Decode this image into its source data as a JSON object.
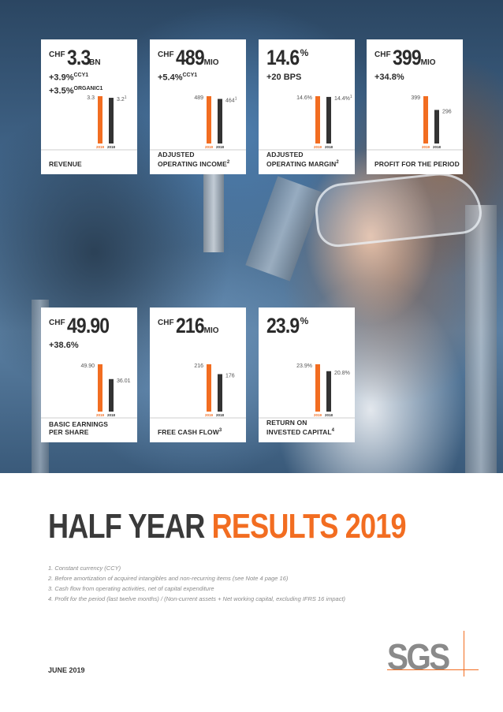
{
  "cards": [
    {
      "currency": "CHF",
      "value": "3.3",
      "suffix": "BN",
      "growth": [
        "+3.9%",
        "+3.5%"
      ],
      "growth_sup": [
        "CCY1",
        "ORGANIC1"
      ],
      "bar_labels": [
        "3.3",
        "3.2"
      ],
      "bar_label_sup": [
        "",
        "1"
      ],
      "bars": [
        3.3,
        3.2
      ],
      "years": [
        "2019",
        "2018"
      ],
      "label": "REVENUE"
    },
    {
      "currency": "CHF",
      "value": "489",
      "suffix": "MIO",
      "growth": [
        "+5.4%"
      ],
      "growth_sup": [
        "CCY1"
      ],
      "bar_labels": [
        "489",
        "464"
      ],
      "bar_label_sup": [
        "",
        "1"
      ],
      "bars": [
        489,
        464
      ],
      "years": [
        "2019",
        "2018"
      ],
      "label": "ADJUSTED\nOPERATING INCOME2"
    },
    {
      "currency": "",
      "value": "14.6",
      "pct": "%",
      "growth": [
        "+20 BPS"
      ],
      "growth_sup": [
        ""
      ],
      "bar_labels": [
        "14.6%",
        "14.4%"
      ],
      "bar_label_sup": [
        "",
        "1"
      ],
      "bars": [
        14.6,
        14.4
      ],
      "years": [
        "2019",
        "2018"
      ],
      "label": "ADJUSTED\nOPERATING MARGIN2"
    },
    {
      "currency": "CHF",
      "value": "399",
      "suffix": "MIO",
      "growth": [
        "+34.8%"
      ],
      "growth_sup": [
        ""
      ],
      "bar_labels": [
        "399",
        "296"
      ],
      "bar_label_sup": [
        "",
        ""
      ],
      "bars": [
        399,
        296
      ],
      "years": [
        "2019",
        "2018"
      ],
      "label": "PROFIT FOR THE PERIOD"
    },
    {
      "currency": "CHF",
      "value": "49.90",
      "suffix": "",
      "growth": [
        "+38.6%"
      ],
      "growth_sup": [
        ""
      ],
      "bar_labels": [
        "49.90",
        "36.01"
      ],
      "bar_label_sup": [
        "",
        ""
      ],
      "bars": [
        49.9,
        36.01
      ],
      "years": [
        "2019",
        "2018"
      ],
      "label": "BASIC EARNINGS\nPER SHARE"
    },
    {
      "currency": "CHF",
      "value": "216",
      "suffix": "MIO",
      "growth": [],
      "growth_sup": [],
      "bar_labels": [
        "216",
        "176"
      ],
      "bar_label_sup": [
        "",
        ""
      ],
      "bars": [
        216,
        176
      ],
      "years": [
        "2019",
        "2018"
      ],
      "label": "FREE CASH FLOW3"
    },
    {
      "currency": "",
      "value": "23.9",
      "pct": "%",
      "growth": [],
      "growth_sup": [],
      "bar_labels": [
        "23.9%",
        "20.8%"
      ],
      "bar_label_sup": [
        "",
        ""
      ],
      "bars": [
        23.9,
        20.8
      ],
      "years": [
        "2019",
        "2018"
      ],
      "label": "RETURN ON\nINVESTED CAPITAL4"
    }
  ],
  "title": {
    "dark": "HALF YEAR",
    "accent": "RESULTS 2019"
  },
  "footnotes": [
    "1. Constant currency (CCY)",
    "2. Before amortization of acquired intangibles and non-recurring items (see Note 4 page 16)",
    "3. Cash flow from operating activities, net of capital expenditure",
    "4. Profit for the period (last twelve months) / (Non-current assets + Net working capital, excluding IFRS 16 impact)"
  ],
  "date": "JUNE 2019",
  "logo": "SGS",
  "colors": {
    "accent": "#f26d21",
    "dark": "#333333"
  }
}
